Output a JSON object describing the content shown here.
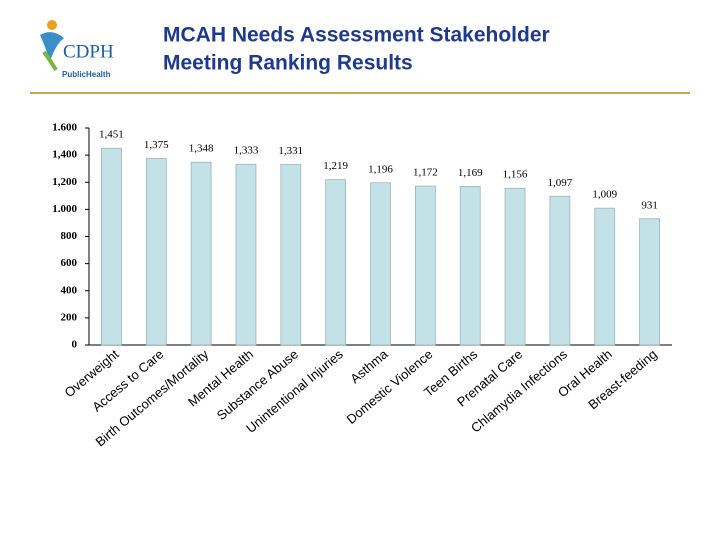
{
  "logo": {
    "name": "CDPH",
    "subtitle": "PublicHealth"
  },
  "chart_data": {
    "type": "bar",
    "title": [
      "MCAH Needs Assessment Stakeholder",
      "Meeting Ranking Results"
    ],
    "categories": [
      "Overweight",
      "Access to Care",
      "Birth Outcomes/Mortality",
      "Mental Health",
      "Substance Abuse",
      "Unintentional Injuries",
      "Asthma",
      "Domestic Violence",
      "Teen Births",
      "Prenatal Care",
      "Chlamydia Infections",
      "Oral Health",
      "Breast-feeding"
    ],
    "values": [
      1451,
      1375,
      1348,
      1333,
      1331,
      1219,
      1196,
      1172,
      1169,
      1156,
      1097,
      1009,
      931
    ],
    "value_labels": [
      "1,451",
      "1,375",
      "1,348",
      "1,333",
      "1,331",
      "1,219",
      "1,196",
      "1,172",
      "1,169",
      "1,156",
      "1,097",
      "1,009",
      "931"
    ],
    "color": "#c2e2e8",
    "ylim": [
      0,
      1600
    ],
    "yticks": [
      0,
      200,
      400,
      600,
      800,
      {
        "value": 1000,
        "label": "1.000"
      },
      {
        "value": 1200,
        "label": "1,200"
      },
      {
        "value": 1400,
        "label": "1,400"
      },
      {
        "value": 1600,
        "label": "1.600"
      }
    ]
  }
}
